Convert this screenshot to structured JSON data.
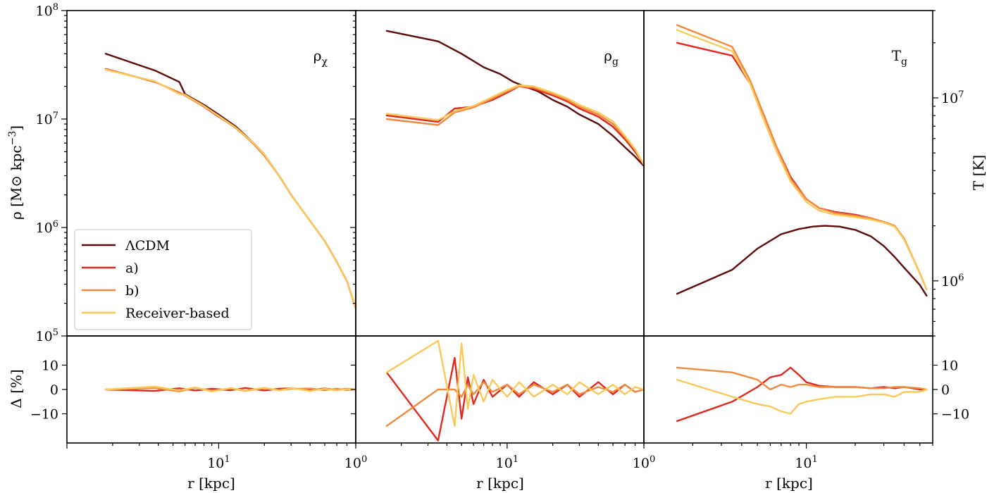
{
  "colors": {
    "lcdm": "#5c0a0a",
    "a": "#e0281e",
    "b": "#f08a3e",
    "receiver": "#fbc95a"
  },
  "legend": {
    "entries": [
      "ΛCDM",
      "a)",
      "b)",
      "Receiver-based"
    ],
    "position": "lower-left of first panel"
  },
  "labels": {
    "ylabel_left": "ρ [M⊙ kpc⁻³]",
    "ylabel_right": "T [K]",
    "ylabel_residual": "Δ [%]",
    "xlabel": "r [kpc]"
  },
  "chart_data": [
    {
      "type": "line",
      "panel": "rho_dm",
      "title": "ρχ",
      "xscale": "log",
      "yscale": "log",
      "xlim": [
        1,
        80
      ],
      "ylim": [
        100000,
        100000000
      ],
      "x_ticks": [
        "10⁰",
        "10¹",
        "10⁰"
      ],
      "y_ticks": [
        "10⁵",
        "10⁶",
        "10⁷",
        "10⁸"
      ],
      "series": [
        {
          "name": "ΛCDM",
          "x": [
            1.8,
            3.8,
            5.5,
            6,
            8,
            10,
            13,
            17,
            20,
            25,
            30,
            40,
            50,
            60,
            70,
            80
          ],
          "y": [
            40000000,
            28000000,
            22000000,
            17000000,
            13500000,
            11000000,
            8500000,
            6000000,
            4700000,
            3000000,
            2000000,
            1150000,
            750000,
            480000,
            320000,
            180000
          ]
        },
        {
          "name": "a)",
          "x": [
            1.8,
            3.8,
            5.5,
            6,
            8,
            10,
            13,
            17,
            20,
            25,
            30,
            40,
            50,
            60,
            70,
            80
          ],
          "y": [
            29000000,
            22000000,
            17500000,
            16500000,
            13000000,
            10500000,
            8300000,
            5900000,
            4600000,
            3000000,
            2000000,
            1150000,
            750000,
            480000,
            320000,
            180000
          ]
        },
        {
          "name": "b)",
          "x": [
            1.8,
            3.8,
            5.5,
            6,
            8,
            10,
            13,
            17,
            20,
            25,
            30,
            40,
            50,
            60,
            70,
            80
          ],
          "y": [
            28800000,
            22200000,
            17300000,
            16800000,
            13200000,
            10600000,
            8200000,
            5950000,
            4650000,
            3000000,
            2000000,
            1150000,
            750000,
            480000,
            320000,
            180000
          ]
        },
        {
          "name": "Receiver-based",
          "x": [
            1.8,
            3.8,
            5.5,
            6,
            8,
            10,
            13,
            17,
            20,
            25,
            30,
            40,
            50,
            60,
            70,
            80
          ],
          "y": [
            28500000,
            22300000,
            17000000,
            16600000,
            13100000,
            10700000,
            8300000,
            6000000,
            4700000,
            3000000,
            2000000,
            1150000,
            750000,
            480000,
            320000,
            180000
          ]
        }
      ]
    },
    {
      "type": "line",
      "panel": "rho_gas",
      "title": "ρg",
      "xscale": "log",
      "yscale": "log",
      "xlim": [
        1,
        80
      ],
      "ylim": [
        100000,
        100000000
      ],
      "x_ticks": [
        "10⁰",
        "10¹",
        "10⁰"
      ],
      "series": [
        {
          "name": "ΛCDM",
          "x": [
            1.6,
            3.5,
            5,
            7,
            9,
            11,
            13,
            16,
            20,
            25,
            30,
            40,
            50,
            60,
            70,
            80
          ],
          "y": [
            65000000,
            52000000,
            40000000,
            30000000,
            26000000,
            22000000,
            20000000,
            18000000,
            15000000,
            13000000,
            11000000,
            9000000,
            7000000,
            5500000,
            4500000,
            3700000
          ]
        },
        {
          "name": "a)",
          "x": [
            1.6,
            3.5,
            4.5,
            6,
            8,
            10,
            12,
            15,
            20,
            25,
            30,
            40,
            50,
            60,
            70,
            80
          ],
          "y": [
            10800000,
            9400000,
            12500000,
            13000000,
            15000000,
            17500000,
            20000000,
            19000000,
            16500000,
            14500000,
            12500000,
            10500000,
            8500000,
            6500000,
            5000000,
            3800000
          ]
        },
        {
          "name": "b)",
          "x": [
            1.6,
            3.5,
            4.5,
            6,
            8,
            10,
            12,
            15,
            20,
            25,
            30,
            40,
            50,
            60,
            70,
            80
          ],
          "y": [
            10000000,
            8800000,
            11500000,
            12800000,
            15500000,
            18000000,
            20000000,
            19500000,
            17000000,
            15000000,
            13000000,
            11000000,
            9000000,
            6800000,
            5200000,
            3800000
          ]
        },
        {
          "name": "Receiver-based",
          "x": [
            1.6,
            3.5,
            4.5,
            6,
            8,
            10,
            12,
            15,
            20,
            25,
            30,
            40,
            50,
            60,
            70,
            80
          ],
          "y": [
            11200000,
            9800000,
            11800000,
            13200000,
            16000000,
            18500000,
            20500000,
            20000000,
            17500000,
            15500000,
            13500000,
            11500000,
            9500000,
            7000000,
            5300000,
            3800000
          ]
        }
      ]
    },
    {
      "type": "line",
      "panel": "temperature",
      "title": "Tg",
      "xscale": "log",
      "yscale": "log",
      "xlim": [
        1,
        60
      ],
      "ylim": [
        500000,
        30000000
      ],
      "x_ticks": [
        "10⁰",
        "10¹"
      ],
      "y_ticks": [
        "10⁶",
        "10⁷"
      ],
      "series": [
        {
          "name": "ΛCDM",
          "x": [
            1.6,
            3.5,
            5,
            7,
            9,
            11,
            13,
            16,
            20,
            25,
            30,
            35,
            40,
            50,
            55
          ],
          "y": [
            850000,
            1150000,
            1500000,
            1800000,
            1920000,
            1980000,
            2000000,
            1980000,
            1900000,
            1750000,
            1550000,
            1350000,
            1180000,
            950000,
            830000
          ]
        },
        {
          "name": "a)",
          "x": [
            1.6,
            3.5,
            4.5,
            5.5,
            6.5,
            8,
            10,
            12,
            15,
            20,
            25,
            30,
            35,
            40,
            50,
            55
          ],
          "y": [
            20000000,
            17000000,
            12000000,
            8000000,
            5500000,
            3700000,
            2800000,
            2500000,
            2380000,
            2300000,
            2200000,
            2100000,
            2000000,
            1700000,
            1100000,
            900000
          ]
        },
        {
          "name": "b)",
          "x": [
            1.6,
            3.5,
            4.5,
            5.5,
            6.5,
            8,
            10,
            12,
            15,
            20,
            25,
            30,
            35,
            40,
            50,
            55
          ],
          "y": [
            25000000,
            19000000,
            12500000,
            8000000,
            5500000,
            3600000,
            2800000,
            2500000,
            2350000,
            2270000,
            2200000,
            2100000,
            2000000,
            1700000,
            1100000,
            900000
          ]
        },
        {
          "name": "Receiver-based",
          "x": [
            1.6,
            3.5,
            4.5,
            5.5,
            6.5,
            8,
            10,
            12,
            15,
            20,
            25,
            30,
            35,
            40,
            50,
            55
          ],
          "y": [
            23500000,
            18000000,
            12000000,
            7500000,
            5200000,
            3500000,
            2700000,
            2420000,
            2300000,
            2230000,
            2160000,
            2080000,
            1980000,
            1680000,
            1100000,
            900000
          ]
        }
      ]
    },
    {
      "type": "line",
      "panel": "residual_dm",
      "ylabel": "Δ [%]",
      "xscale": "log",
      "xlim": [
        1,
        80
      ],
      "ylim": [
        -22,
        22
      ],
      "y_ticks": [
        "10",
        "0",
        "−10"
      ],
      "series": [
        {
          "name": "a)",
          "x": [
            1.8,
            3.8,
            5.5,
            7,
            9,
            12,
            15,
            20,
            25,
            30,
            40,
            50,
            60,
            70,
            80
          ],
          "y": [
            0,
            -0.6,
            0.5,
            -0.4,
            0.3,
            -0.3,
            0.6,
            -0.4,
            0.3,
            0.5,
            -0.3,
            0.4,
            -0.2,
            0.3,
            0
          ]
        },
        {
          "name": "b)",
          "x": [
            1.8,
            3.8,
            5.5,
            7,
            9,
            12,
            15,
            20,
            25,
            30,
            40,
            50,
            60,
            70,
            80
          ],
          "y": [
            0,
            0.6,
            -0.8,
            0.7,
            -0.5,
            0.4,
            -0.6,
            0.5,
            -0.3,
            0.2,
            0.4,
            -0.3,
            0.3,
            -0.2,
            0
          ]
        },
        {
          "name": "Receiver-based",
          "x": [
            1.8,
            3.8,
            5.5,
            7,
            9,
            12,
            15,
            20,
            25,
            30,
            40,
            50,
            60,
            70,
            80
          ],
          "y": [
            0,
            1.2,
            -0.4,
            0.9,
            -0.8,
            0.6,
            -0.5,
            0.7,
            -0.4,
            0.5,
            -0.6,
            0.3,
            -0.4,
            0.2,
            0
          ]
        }
      ]
    },
    {
      "type": "line",
      "panel": "residual_gas",
      "xscale": "log",
      "xlim": [
        1,
        80
      ],
      "ylim": [
        -22,
        22
      ],
      "series": [
        {
          "name": "a)",
          "x": [
            1.6,
            3.5,
            4.5,
            5,
            5.5,
            6,
            7,
            8,
            10,
            12,
            15,
            20,
            25,
            30,
            40,
            50,
            60,
            70,
            80
          ],
          "y": [
            7,
            -21,
            13,
            -12,
            5,
            -6,
            4,
            -3,
            2,
            -3,
            3,
            -2,
            2,
            -3,
            3,
            -2,
            2,
            -1,
            0
          ]
        },
        {
          "name": "b)",
          "x": [
            1.6,
            3.5,
            4.5,
            5,
            5.5,
            6,
            7,
            8,
            10,
            12,
            15,
            20,
            25,
            30,
            40,
            50,
            60,
            70,
            80
          ],
          "y": [
            -15,
            0,
            0,
            -3,
            2,
            -2,
            3,
            -1,
            2,
            -2,
            2,
            -1,
            2,
            -2,
            1,
            -1,
            2,
            -1,
            0
          ]
        },
        {
          "name": "Receiver-based",
          "x": [
            1.6,
            3.5,
            4.5,
            5,
            5.5,
            6,
            7,
            8,
            10,
            12,
            15,
            20,
            25,
            30,
            40,
            50,
            60,
            70,
            80
          ],
          "y": [
            7,
            20,
            -15,
            19,
            -8,
            6,
            -5,
            4,
            -3,
            3,
            -3,
            2,
            -2,
            3,
            -2,
            2,
            -2,
            1,
            0
          ]
        }
      ]
    },
    {
      "type": "line",
      "panel": "residual_temperature",
      "xscale": "log",
      "xlim": [
        1,
        60
      ],
      "ylim": [
        -22,
        22
      ],
      "y_ticks": [
        "10",
        "0",
        "−10"
      ],
      "series": [
        {
          "name": "a)",
          "x": [
            1.6,
            3.5,
            5,
            6,
            7,
            8,
            9,
            10,
            12,
            15,
            20,
            25,
            30,
            35,
            40,
            50,
            55
          ],
          "y": [
            -13,
            -5,
            1,
            5,
            6,
            9,
            6,
            3,
            1.5,
            1,
            1,
            0.5,
            1,
            0.5,
            1,
            0,
            0
          ]
        },
        {
          "name": "b)",
          "x": [
            1.6,
            3.5,
            5,
            6,
            7,
            8,
            9,
            10,
            12,
            15,
            20,
            25,
            30,
            35,
            40,
            50,
            55
          ],
          "y": [
            9,
            7,
            4,
            0,
            2,
            1,
            2,
            2,
            1,
            1,
            1,
            0.5,
            0.5,
            1,
            1,
            0.5,
            0
          ]
        },
        {
          "name": "Receiver-based",
          "x": [
            1.6,
            3.5,
            5,
            6,
            7,
            8,
            9,
            10,
            12,
            15,
            20,
            25,
            30,
            35,
            40,
            50,
            55
          ],
          "y": [
            4,
            -3,
            -6,
            -7,
            -9,
            -10,
            -6,
            -5,
            -4,
            -3,
            -3,
            -2,
            -2,
            -3,
            -1,
            -1,
            0
          ]
        }
      ]
    }
  ]
}
